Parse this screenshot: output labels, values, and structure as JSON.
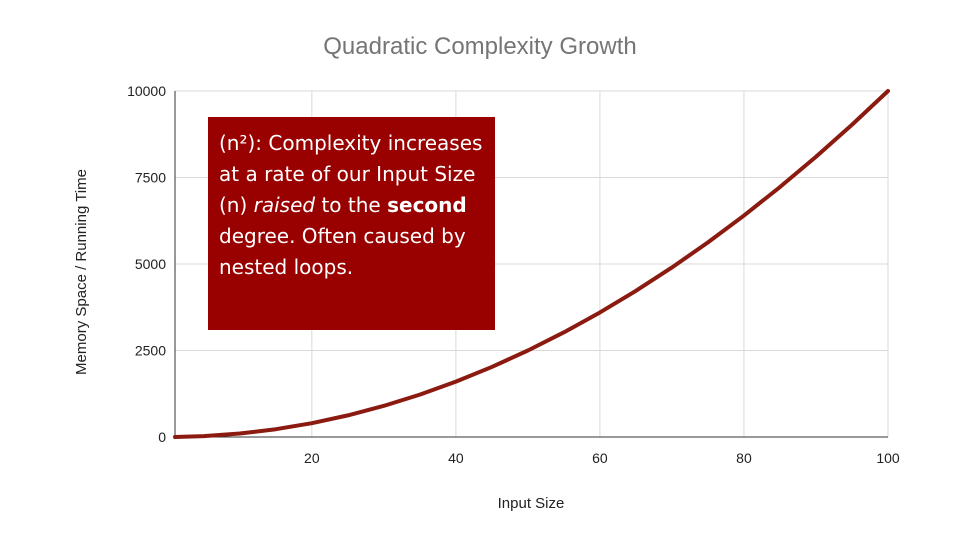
{
  "chart_data": {
    "type": "line",
    "title": "Quadratic Complexity Growth",
    "xlabel": "Input Size",
    "ylabel": "Memory Space / Running Time",
    "xlim": [
      1,
      100
    ],
    "ylim": [
      0,
      10000
    ],
    "x_ticks": [
      20,
      40,
      60,
      80,
      100
    ],
    "y_ticks": [
      0,
      2500,
      5000,
      7500,
      10000
    ],
    "grid": true,
    "legend": "none",
    "series": [
      {
        "color": "#8b1a10",
        "x": [
          1,
          5,
          10,
          15,
          20,
          25,
          30,
          35,
          40,
          45,
          50,
          55,
          60,
          65,
          70,
          75,
          80,
          85,
          90,
          95,
          100
        ],
        "y": [
          1,
          25,
          100,
          225,
          400,
          625,
          900,
          1225,
          1600,
          2025,
          2500,
          3025,
          3600,
          4225,
          4900,
          5625,
          6400,
          7225,
          8100,
          9025,
          10000
        ]
      }
    ],
    "annotation": {
      "part1": "(n²): Complexity increases at a rate of our Input Size (n) ",
      "italic": "raised",
      "part2": " to the ",
      "bold": "second",
      "part3": " degree. Often caused by nested loops.",
      "background": "#990000",
      "color": "#ffffff"
    }
  }
}
